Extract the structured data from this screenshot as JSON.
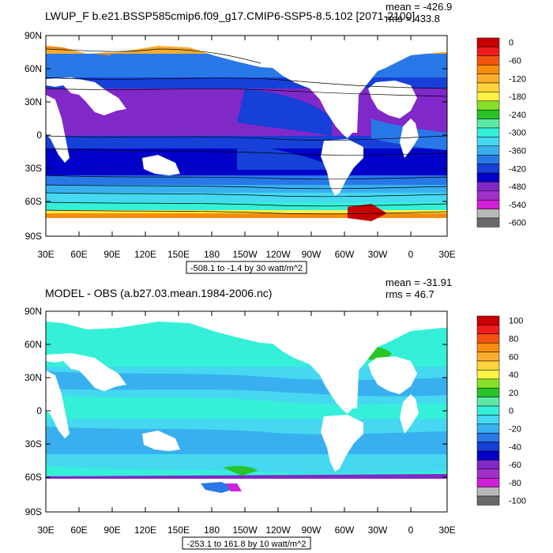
{
  "panels": [
    {
      "title": "LWUP_F b.e21.BSSP585cmip6.f09_g17.CMIP6-SSP5-8.5.102 [2071-2100]",
      "mean": "mean = -426.9",
      "rms": "rms = 433.8",
      "range_label": "-508.1 to -1.4 by 30 watt/m^2",
      "lat_ticks": [
        "90N",
        "60N",
        "30N",
        "0",
        "30S",
        "60S",
        "90S"
      ],
      "lon_ticks": [
        "30E",
        "60E",
        "90E",
        "120E",
        "150E",
        "180",
        "150W",
        "120W",
        "90W",
        "60W",
        "30W",
        "0",
        "30E"
      ],
      "colorbar": {
        "labels": [
          "0",
          "-60",
          "-120",
          "-180",
          "-240",
          "-300",
          "-360",
          "-420",
          "-480",
          "-540",
          "-600"
        ],
        "colors": [
          "#c80000",
          "#ee1c1c",
          "#f25410",
          "#fb8b0c",
          "#fdad2e",
          "#ffd43c",
          "#fff246",
          "#88df28",
          "#28c428",
          "#5ee8a8",
          "#35f0d8",
          "#45d8f0",
          "#38b0f0",
          "#2878e8",
          "#1640d8",
          "#0000c8",
          "#8028c8",
          "#a030c8",
          "#d020d8",
          "#b8b8b8",
          "#6a6a6a"
        ]
      }
    },
    {
      "title": "MODEL - OBS (a.b27.03.mean.1984-2006.nc)",
      "mean": "mean = -31.91",
      "rms": "rms = 46.7",
      "range_label": "-253.1 to 161.8 by 10 watt/m^2",
      "lat_ticks": [
        "90N",
        "60N",
        "30N",
        "0",
        "30S",
        "60S",
        "90S"
      ],
      "lon_ticks": [
        "30E",
        "60E",
        "90E",
        "120E",
        "150E",
        "180",
        "150W",
        "120W",
        "90W",
        "60W",
        "30W",
        "0",
        "30E"
      ],
      "colorbar": {
        "labels": [
          "100",
          "80",
          "60",
          "40",
          "20",
          "0",
          "-20",
          "-40",
          "-60",
          "-80",
          "-100"
        ],
        "colors": [
          "#c80000",
          "#ee1c1c",
          "#f25410",
          "#fb8b0c",
          "#fdad2e",
          "#ffd43c",
          "#fff246",
          "#88df28",
          "#28c428",
          "#5ee8a8",
          "#35f0d8",
          "#45d8f0",
          "#38b0f0",
          "#2878e8",
          "#1640d8",
          "#0000c8",
          "#8028c8",
          "#a030c8",
          "#d020d8",
          "#b8b8b8",
          "#6a6a6a"
        ]
      }
    }
  ]
}
